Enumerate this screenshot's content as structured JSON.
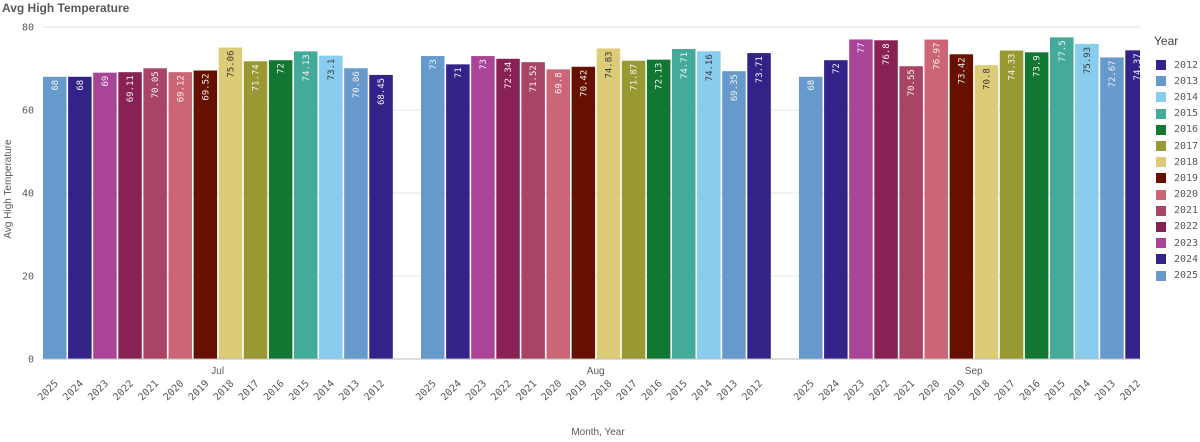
{
  "chart_data": {
    "type": "bar",
    "title": "Avg High Temperature",
    "xlabel": "Month, Year",
    "ylabel": "Avg High Temperature",
    "ylim": [
      0,
      80
    ],
    "yticks": [
      0,
      20,
      40,
      60,
      80
    ],
    "grid": true,
    "legend_position": "right",
    "legend_title": "Year",
    "legend": [
      "2012",
      "2013",
      "2014",
      "2015",
      "2016",
      "2017",
      "2018",
      "2019",
      "2020",
      "2021",
      "2022",
      "2023",
      "2024",
      "2025"
    ],
    "year_colors": {
      "2012": "#332288",
      "2013": "#6699cc",
      "2014": "#88ccee",
      "2015": "#44aa99",
      "2016": "#117733",
      "2017": "#999933",
      "2018": "#ddcc77",
      "2019": "#661100",
      "2020": "#cc6677",
      "2021": "#aa4466",
      "2022": "#882255",
      "2023": "#aa4499",
      "2024": "#332288",
      "2025": "#6699cc"
    },
    "groups": [
      {
        "month": "Jul",
        "years": [
          "2025",
          "2024",
          "2023",
          "2022",
          "2021",
          "2020",
          "2019",
          "2018",
          "2017",
          "2016",
          "2015",
          "2014",
          "2013",
          "2012"
        ],
        "values": [
          68,
          68,
          69,
          69.11,
          70.05,
          69.12,
          69.52,
          75.06,
          71.74,
          72,
          74.13,
          73.1,
          70.06,
          68.45
        ],
        "labels": [
          "68",
          "68",
          "69",
          "69.11",
          "70.05",
          "69.12",
          "69.52",
          "75.06",
          "71.74",
          "72",
          "74.13",
          "73.1",
          "70.06",
          "68.45"
        ]
      },
      {
        "month": "Aug",
        "years": [
          "2025",
          "2024",
          "2023",
          "2022",
          "2021",
          "2020",
          "2019",
          "2018",
          "2017",
          "2016",
          "2015",
          "2014",
          "2013",
          "2012"
        ],
        "values": [
          73,
          71,
          73,
          72.34,
          71.52,
          69.8,
          70.42,
          74.83,
          71.87,
          72.13,
          74.71,
          74.16,
          69.35,
          73.71
        ],
        "labels": [
          "73",
          "71",
          "73",
          "72.34",
          "71.52",
          "69.8",
          "70.42",
          "74.83",
          "71.87",
          "72.13",
          "74.71",
          "74.16",
          "69.35",
          "73.71"
        ]
      },
      {
        "month": "Sep",
        "years": [
          "2025",
          "2024",
          "2023",
          "2022",
          "2021",
          "2020",
          "2019",
          "2018",
          "2017",
          "2016",
          "2015",
          "2014",
          "2013",
          "2012"
        ],
        "values": [
          68,
          72,
          77,
          76.8,
          70.55,
          76.97,
          73.42,
          70.8,
          74.33,
          73.9,
          77.5,
          75.93,
          72.67,
          74.37
        ],
        "labels": [
          "68",
          "72",
          "77",
          "76.8",
          "70.55",
          "76.97",
          "73.42",
          "70.8",
          "74.33",
          "73.9",
          "77.5",
          "75.93",
          "72.67",
          "74.37"
        ]
      }
    ]
  }
}
